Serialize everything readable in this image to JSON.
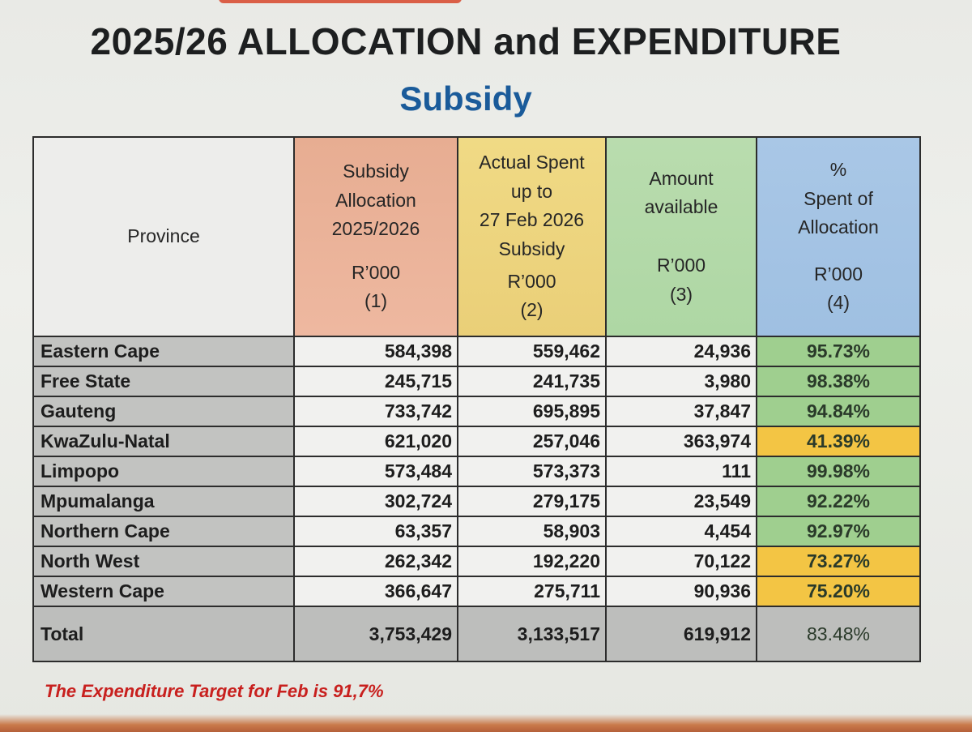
{
  "title": "2025/26 ALLOCATION and EXPENDITURE",
  "subtitle": "Subsidy",
  "table": {
    "headers": {
      "province": "Province",
      "allocation": {
        "line1": "Subsidy",
        "line2": "Allocation",
        "line3": "2025/2026",
        "unit": "R’000",
        "index": "(1)"
      },
      "spent": {
        "line1": "Actual Spent",
        "line2": "up to",
        "line3": "27 Feb 2026",
        "line4": "Subsidy",
        "unit": "R’000",
        "index": "(2)"
      },
      "available": {
        "line1": "Amount",
        "line2": "available",
        "unit": "R’000",
        "index": "(3)"
      },
      "percent": {
        "line1": "%",
        "line2": "Spent of",
        "line3": "Allocation",
        "unit": "R’000",
        "index": "(4)"
      }
    },
    "rows": [
      {
        "province": "Eastern Cape",
        "allocation": "584,398",
        "spent": "559,462",
        "available": "24,936",
        "percent": "95.73%",
        "status": "green"
      },
      {
        "province": "Free State",
        "allocation": "245,715",
        "spent": "241,735",
        "available": "3,980",
        "percent": "98.38%",
        "status": "green"
      },
      {
        "province": "Gauteng",
        "allocation": "733,742",
        "spent": "695,895",
        "available": "37,847",
        "percent": "94.84%",
        "status": "green"
      },
      {
        "province": "KwaZulu-Natal",
        "allocation": "621,020",
        "spent": "257,046",
        "available": "363,974",
        "percent": "41.39%",
        "status": "amber"
      },
      {
        "province": "Limpopo",
        "allocation": "573,484",
        "spent": "573,373",
        "available": "111",
        "percent": "99.98%",
        "status": "green"
      },
      {
        "province": "Mpumalanga",
        "allocation": "302,724",
        "spent": "279,175",
        "available": "23,549",
        "percent": "92.22%",
        "status": "green"
      },
      {
        "province": "Northern Cape",
        "allocation": "63,357",
        "spent": "58,903",
        "available": "4,454",
        "percent": "92.97%",
        "status": "green"
      },
      {
        "province": "North West",
        "allocation": "262,342",
        "spent": "192,220",
        "available": "70,122",
        "percent": "73.27%",
        "status": "amber"
      },
      {
        "province": "Western Cape",
        "allocation": "366,647",
        "spent": "275,711",
        "available": "90,936",
        "percent": "75.20%",
        "status": "amber"
      }
    ],
    "total": {
      "province": "Total",
      "allocation": "3,753,429",
      "spent": "3,133,517",
      "available": "619,912",
      "percent": "83.48%"
    }
  },
  "colors": {
    "green": "#9fcf8f",
    "amber": "#f3c544",
    "title_blue": "#1a5b9a",
    "note_red": "#c8201e"
  },
  "note": "The Expenditure Target for Feb is 91,7%"
}
